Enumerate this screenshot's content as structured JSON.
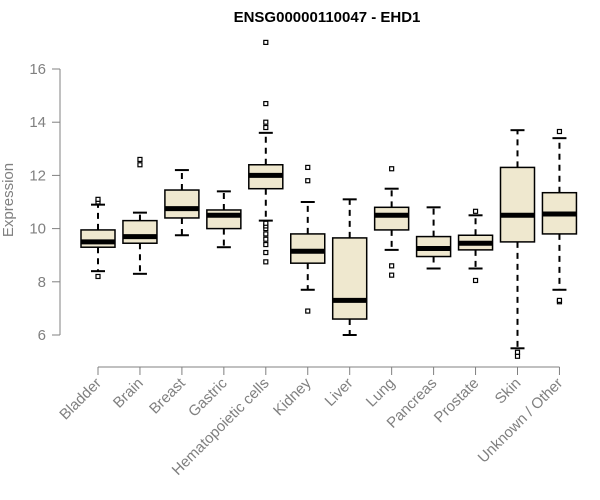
{
  "chart_data": {
    "type": "box",
    "title": "ENSG00000110047 - EHD1",
    "xlabel": "",
    "ylabel": "Expression",
    "ylim": [
      5,
      17
    ],
    "yticks": [
      6,
      8,
      10,
      12,
      14,
      16
    ],
    "grid": false,
    "colors": {
      "box_fill": "#efe8cf",
      "stroke": "#000000",
      "median": "#000000",
      "axis": "#808080"
    },
    "categories": [
      "Bladder",
      "Brain",
      "Breast",
      "Gastric",
      "Hematopoietic cells",
      "Kidney",
      "Liver",
      "Lung",
      "Pancreas",
      "Prostate",
      "Skin",
      "Unknown / Other"
    ],
    "boxes": [
      {
        "category": "Bladder",
        "whisker_low": 8.4,
        "q1": 9.3,
        "median": 9.5,
        "q3": 9.95,
        "whisker_high": 10.9,
        "outliers": [
          8.2,
          11.0,
          11.1
        ]
      },
      {
        "category": "Brain",
        "whisker_low": 8.3,
        "q1": 9.45,
        "median": 9.7,
        "q3": 10.3,
        "whisker_high": 10.6,
        "outliers": [
          12.4,
          12.6
        ]
      },
      {
        "category": "Breast",
        "whisker_low": 9.75,
        "q1": 10.4,
        "median": 10.75,
        "q3": 11.45,
        "whisker_high": 12.2,
        "outliers": []
      },
      {
        "category": "Gastric",
        "whisker_low": 9.3,
        "q1": 10.0,
        "median": 10.5,
        "q3": 10.7,
        "whisker_high": 11.4,
        "outliers": []
      },
      {
        "category": "Hematopoietic cells",
        "whisker_low": 10.3,
        "q1": 11.5,
        "median": 12.0,
        "q3": 12.4,
        "whisker_high": 13.6,
        "outliers": [
          8.75,
          9.1,
          9.4,
          9.6,
          9.8,
          10.0,
          10.1,
          10.2,
          13.8,
          14.0,
          14.7,
          17.0
        ]
      },
      {
        "category": "Kidney",
        "whisker_low": 7.7,
        "q1": 8.7,
        "median": 9.15,
        "q3": 9.8,
        "whisker_high": 11.0,
        "outliers": [
          6.9,
          11.8,
          12.3
        ]
      },
      {
        "category": "Liver",
        "whisker_low": 6.0,
        "q1": 6.6,
        "median": 7.3,
        "q3": 9.65,
        "whisker_high": 11.1,
        "outliers": []
      },
      {
        "category": "Lung",
        "whisker_low": 9.2,
        "q1": 9.95,
        "median": 10.5,
        "q3": 10.8,
        "whisker_high": 11.5,
        "outliers": [
          8.25,
          8.6,
          12.25
        ]
      },
      {
        "category": "Pancreas",
        "whisker_low": 8.5,
        "q1": 8.95,
        "median": 9.25,
        "q3": 9.7,
        "whisker_high": 10.8,
        "outliers": []
      },
      {
        "category": "Prostate",
        "whisker_low": 8.5,
        "q1": 9.2,
        "median": 9.45,
        "q3": 9.75,
        "whisker_high": 10.5,
        "outliers": [
          8.05,
          10.65
        ]
      },
      {
        "category": "Skin",
        "whisker_low": 5.5,
        "q1": 9.5,
        "median": 10.5,
        "q3": 12.3,
        "whisker_high": 13.7,
        "outliers": [
          5.2,
          5.35
        ]
      },
      {
        "category": "Unknown / Other",
        "whisker_low": 7.7,
        "q1": 9.8,
        "median": 10.55,
        "q3": 11.35,
        "whisker_high": 13.4,
        "outliers": [
          7.25,
          7.3,
          13.65
        ]
      }
    ]
  }
}
